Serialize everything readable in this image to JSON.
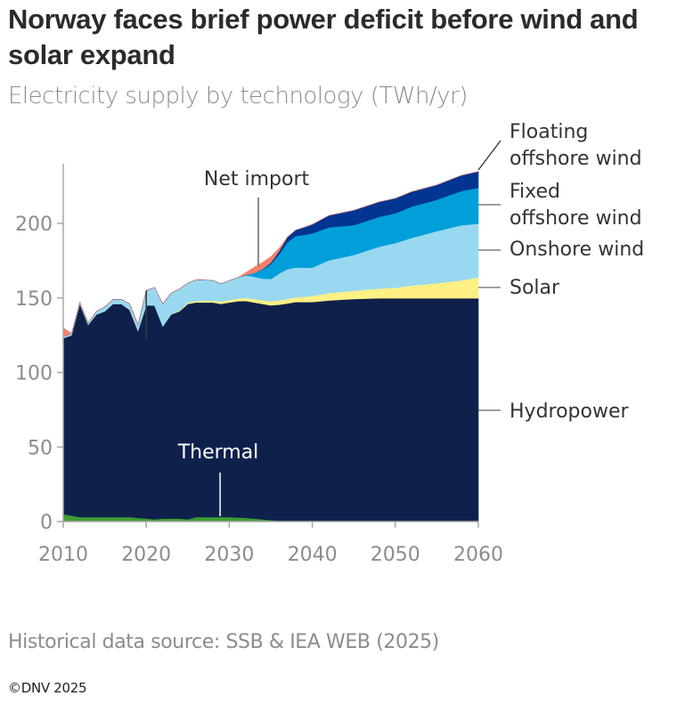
{
  "header": {
    "title": "Norway faces brief power deficit before wind and solar expand",
    "subtitle": "Electricity supply by technology (TWh/yr)"
  },
  "footer": {
    "source": "Historical data source: SSB & IEA WEB (2025)",
    "copyright": "©DNV 2025"
  },
  "chart_data": {
    "type": "area",
    "stacked": true,
    "title": "Norway faces brief power deficit before wind and solar expand",
    "subtitle": "Electricity supply by technology (TWh/yr)",
    "xlabel": "",
    "ylabel": "TWh/yr",
    "xlim": [
      2010,
      2060
    ],
    "ylim": [
      0,
      240
    ],
    "x_ticks": [
      "2010",
      "2020",
      "2030",
      "2040",
      "2050",
      "2060"
    ],
    "y_ticks": [
      "0",
      "50",
      "100",
      "150",
      "200"
    ],
    "grid": false,
    "legend": "direct-labels-right",
    "x": [
      2010,
      2011,
      2012,
      2013,
      2014,
      2015,
      2016,
      2017,
      2018,
      2019,
      2020,
      2021,
      2022,
      2023,
      2024,
      2025,
      2026,
      2027,
      2028,
      2029,
      2030,
      2031,
      2032,
      2033,
      2034,
      2035,
      2036,
      2037,
      2038,
      2039,
      2040,
      2042,
      2045,
      2048,
      2050,
      2052,
      2055,
      2058,
      2060
    ],
    "series": [
      {
        "name": "Thermal",
        "color": "#3F9C35",
        "values": [
          5,
          4,
          3,
          3,
          3,
          3,
          3,
          3,
          3,
          2.5,
          2,
          1.5,
          2,
          2,
          2,
          1.5,
          3,
          3,
          3,
          3,
          3,
          2.8,
          2.5,
          2,
          1.5,
          1,
          0.5,
          0.3,
          0.3,
          0.3,
          0.3,
          0.3,
          0.3,
          0.3,
          0.3,
          0.3,
          0.3,
          0.3,
          0.3
        ]
      },
      {
        "name": "Hydropower",
        "color": "#0F204B",
        "values": [
          118,
          121,
          143,
          129,
          136,
          138,
          143,
          143,
          139,
          125.5,
          143,
          143.5,
          129,
          137,
          139,
          144.5,
          144,
          144,
          144,
          143,
          144,
          145,
          145.5,
          145,
          144.5,
          144,
          145,
          146,
          147,
          147,
          147,
          148,
          149,
          149.5,
          149.5,
          149.5,
          149.5,
          149.5,
          149.5
        ]
      },
      {
        "name": "Solar",
        "color": "#FFF084",
        "values": [
          0,
          0,
          0,
          0,
          0,
          0,
          0,
          0,
          0,
          0,
          0,
          0,
          0,
          0.2,
          0.5,
          1,
          1,
          1,
          1.3,
          1.5,
          1.6,
          1.8,
          2,
          2.2,
          2.5,
          2.7,
          2.8,
          3,
          3.2,
          3.5,
          4,
          5,
          5.5,
          6.5,
          7,
          8.5,
          10,
          12,
          14
        ]
      },
      {
        "name": "Onshore wind",
        "color": "#99D9F0",
        "values": [
          1,
          1,
          1,
          1,
          2,
          3,
          3,
          3,
          4,
          4,
          10,
          12,
          15,
          14,
          14.5,
          13,
          14,
          14,
          13.5,
          12,
          13,
          14,
          15,
          15,
          14.5,
          15,
          18,
          20,
          20,
          19.5,
          19,
          22,
          24,
          28,
          30,
          32,
          35,
          37,
          36
        ]
      },
      {
        "name": "Fixed offshore wind",
        "color": "#009FDA",
        "values": [
          0,
          0,
          0,
          0,
          0,
          0,
          0,
          0,
          0,
          0,
          0,
          0,
          0,
          0,
          0,
          0,
          0,
          0,
          0,
          0,
          0,
          0,
          0.5,
          2.5,
          6,
          10,
          13,
          18,
          21,
          22,
          23,
          22,
          20,
          20,
          20,
          21,
          21,
          23,
          24
        ]
      },
      {
        "name": "Floating offshore wind",
        "color": "#003591",
        "values": [
          0,
          0,
          0,
          0,
          0,
          0,
          0,
          0,
          0,
          0,
          0,
          0,
          0,
          0,
          0,
          0,
          0,
          0,
          0,
          0,
          0,
          0,
          0,
          0,
          0.3,
          1,
          2,
          3.5,
          4,
          5,
          6,
          8,
          10,
          10,
          10,
          10,
          10,
          10.5,
          11
        ]
      },
      {
        "name": "Net import",
        "color": "#F4806A",
        "values": [
          6,
          0,
          0,
          0,
          0,
          0,
          0,
          0,
          0,
          0,
          0,
          0,
          0,
          0,
          0,
          0,
          0,
          0,
          0,
          0,
          0,
          0,
          1.5,
          4,
          4.5,
          4,
          2,
          0,
          0,
          0,
          0,
          0,
          0,
          0,
          0,
          0,
          0,
          0,
          0
        ]
      }
    ],
    "annotations": [
      {
        "text": "Net import",
        "x": 2033.5
      },
      {
        "text": "Thermal",
        "x": 2029
      }
    ],
    "labels_right": [
      {
        "text": "Floating offshore wind",
        "lines": [
          "Floating",
          "offshore wind"
        ]
      },
      {
        "text": "Fixed offshore wind",
        "lines": [
          "Fixed",
          "offshore wind"
        ]
      },
      {
        "text": "Onshore wind",
        "lines": [
          "Onshore wind"
        ]
      },
      {
        "text": "Solar",
        "lines": [
          "Solar"
        ]
      },
      {
        "text": "Hydropower",
        "lines": [
          "Hydropower"
        ]
      }
    ],
    "history_divider_year": 2020
  }
}
